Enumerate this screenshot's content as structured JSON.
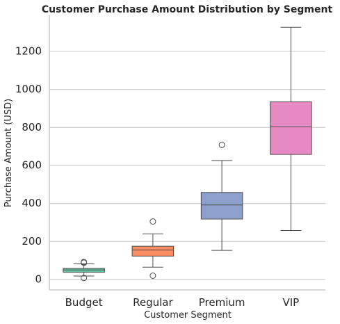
{
  "chart_data": {
    "type": "box",
    "title": "Customer Purchase Amount Distribution by Segment",
    "xlabel": "Customer Segment",
    "ylabel": "Purchase Amount (USD)",
    "ylim": [
      -55,
      1390
    ],
    "yticks": [
      0,
      200,
      400,
      600,
      800,
      1000,
      1200
    ],
    "grid": true,
    "categories": [
      "Budget",
      "Regular",
      "Premium",
      "VIP"
    ],
    "boxes": [
      {
        "name": "Budget",
        "color": "#66c2a5",
        "whisker_low": 18,
        "q1": 38,
        "median": 50,
        "q3": 58,
        "whisker_high": 82,
        "outliers": [
          8,
          88,
          92
        ]
      },
      {
        "name": "Regular",
        "color": "#fc8d62",
        "whisker_low": 65,
        "q1": 123,
        "median": 155,
        "q3": 175,
        "whisker_high": 240,
        "outliers": [
          20,
          305
        ]
      },
      {
        "name": "Premium",
        "color": "#8da0cb",
        "whisker_low": 153,
        "q1": 318,
        "median": 392,
        "q3": 458,
        "whisker_high": 626,
        "outliers": [
          708
        ]
      },
      {
        "name": "VIP",
        "color": "#e78ac3",
        "whisker_low": 258,
        "q1": 658,
        "median": 803,
        "q3": 935,
        "whisker_high": 1327,
        "outliers": []
      }
    ]
  }
}
